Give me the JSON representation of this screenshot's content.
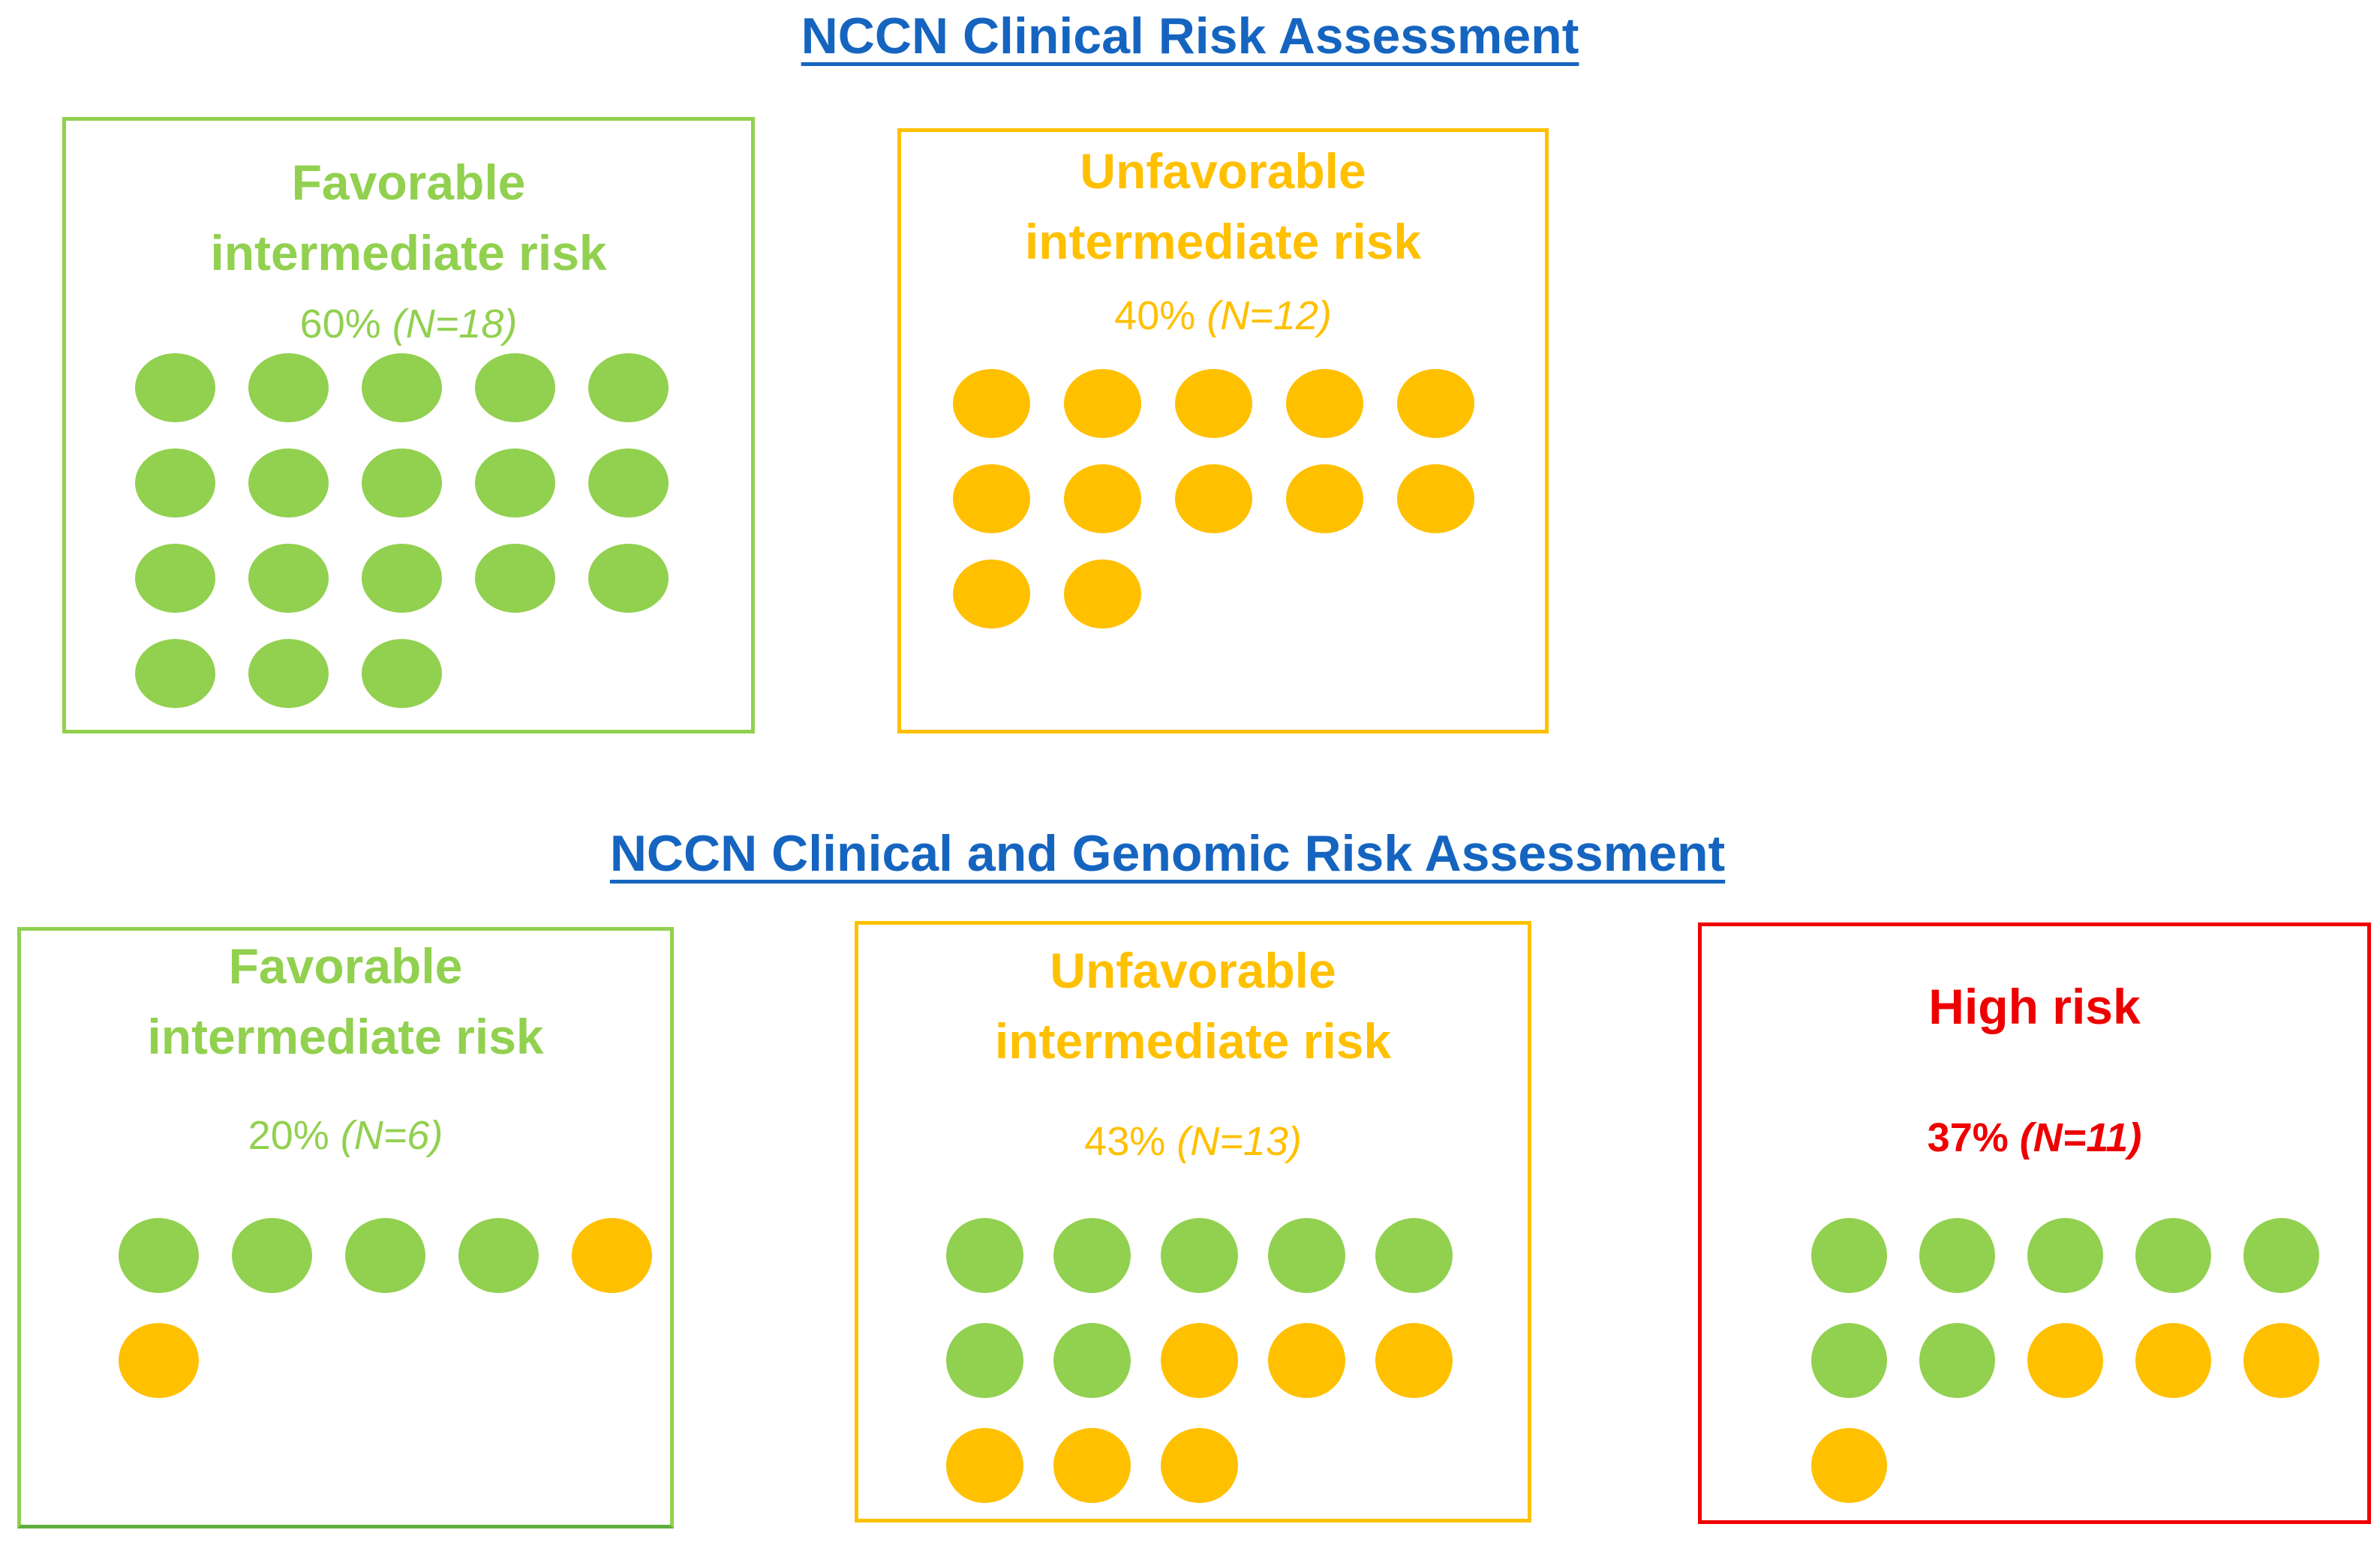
{
  "colors": {
    "heading": "#1565C0",
    "favorable": "#92D050",
    "unfavorable": "#FFC000",
    "high": "#EE0000",
    "favorable_border_bottom": "#5FAE3F"
  },
  "clinical": {
    "title": "NCCN Clinical Risk Assessment",
    "favorable": {
      "title_line1": "Favorable",
      "title_line2": "intermediate risk",
      "pct": "60%",
      "n": "(N=18)",
      "dots": [
        "favorable",
        "favorable",
        "favorable",
        "favorable",
        "favorable",
        "favorable",
        "favorable",
        "favorable",
        "favorable",
        "favorable",
        "favorable",
        "favorable",
        "favorable",
        "favorable",
        "favorable",
        "favorable",
        "favorable",
        "favorable"
      ]
    },
    "unfavorable": {
      "title_line1": "Unfavorable",
      "title_line2": "intermediate risk",
      "pct": "40%",
      "n": "(N=12)",
      "dots": [
        "unfavorable",
        "unfavorable",
        "unfavorable",
        "unfavorable",
        "unfavorable",
        "unfavorable",
        "unfavorable",
        "unfavorable",
        "unfavorable",
        "unfavorable",
        "unfavorable",
        "unfavorable"
      ]
    }
  },
  "genomic": {
    "title": "NCCN Clinical and Genomic Risk Assessment",
    "favorable": {
      "title_line1": "Favorable",
      "title_line2": "intermediate risk",
      "pct": "20%",
      "n": "(N=6)",
      "dots": [
        "favorable",
        "favorable",
        "favorable",
        "favorable",
        "unfavorable",
        "unfavorable"
      ]
    },
    "unfavorable": {
      "title_line1": "Unfavorable",
      "title_line2": "intermediate risk",
      "pct": "43%",
      "n": "(N=13)",
      "dots": [
        "favorable",
        "favorable",
        "favorable",
        "favorable",
        "favorable",
        "favorable",
        "favorable",
        "unfavorable",
        "unfavorable",
        "unfavorable",
        "unfavorable",
        "unfavorable",
        "unfavorable"
      ]
    },
    "high": {
      "title_line1": "High risk",
      "pct": "37%",
      "n": "(N=11)",
      "dots": [
        "favorable",
        "favorable",
        "favorable",
        "favorable",
        "favorable",
        "favorable",
        "favorable",
        "unfavorable",
        "unfavorable",
        "unfavorable",
        "unfavorable"
      ]
    }
  }
}
